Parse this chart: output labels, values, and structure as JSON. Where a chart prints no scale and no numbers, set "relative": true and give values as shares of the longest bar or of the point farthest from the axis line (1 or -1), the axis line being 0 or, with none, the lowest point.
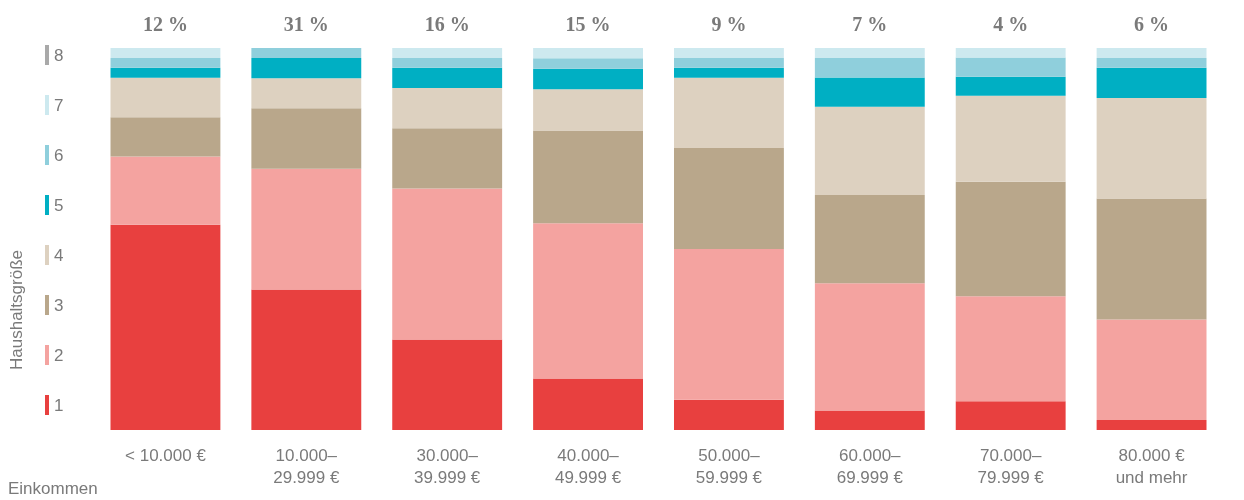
{
  "chart_data": {
    "type": "bar",
    "stacked": true,
    "relative": true,
    "ylabel": "Haushaltsgröße",
    "xlabel": "Einkommen",
    "legend": "left",
    "categories": [
      "< 10.000 €",
      "10.000–\n29.999 €",
      "30.000–\n39.999 €",
      "40.000–\n49.999 €",
      "50.000–\n59.999 €",
      "60.000–\n69.999 €",
      "70.000–\n79.999 €",
      "80.000 €\nund mehr"
    ],
    "annotations": [
      "12 %",
      "31 %",
      "16 %",
      "15 %",
      "9 %",
      "7 %",
      "4 %",
      "6 %"
    ],
    "series": [
      {
        "name": "1",
        "color": "#e8403f",
        "values": [
          0.537,
          0.368,
          0.237,
          0.135,
          0.079,
          0.051,
          0.075,
          0.026
        ]
      },
      {
        "name": "2",
        "color": "#f4a3a0",
        "values": [
          0.179,
          0.316,
          0.395,
          0.406,
          0.395,
          0.333,
          0.275,
          0.263
        ]
      },
      {
        "name": "3",
        "color": "#b9a78b",
        "values": [
          0.103,
          0.158,
          0.158,
          0.243,
          0.264,
          0.231,
          0.3,
          0.317
        ]
      },
      {
        "name": "4",
        "color": "#ddd1c0",
        "values": [
          0.103,
          0.079,
          0.105,
          0.108,
          0.184,
          0.231,
          0.225,
          0.263
        ]
      },
      {
        "name": "5",
        "color": "#00afc3",
        "values": [
          0.026,
          0.053,
          0.053,
          0.054,
          0.026,
          0.077,
          0.05,
          0.079
        ]
      },
      {
        "name": "6",
        "color": "#8fcfdc",
        "values": [
          0.026,
          0.026,
          0.026,
          0.027,
          0.026,
          0.051,
          0.05,
          0.026
        ]
      },
      {
        "name": "7",
        "color": "#cde9ef",
        "values": [
          0.026,
          0,
          0.026,
          0.027,
          0.026,
          0.026,
          0.025,
          0.026
        ]
      },
      {
        "name": "8",
        "color": "#a9a9a9",
        "values": [
          0,
          0,
          0,
          0,
          0,
          0,
          0,
          0
        ]
      }
    ]
  }
}
